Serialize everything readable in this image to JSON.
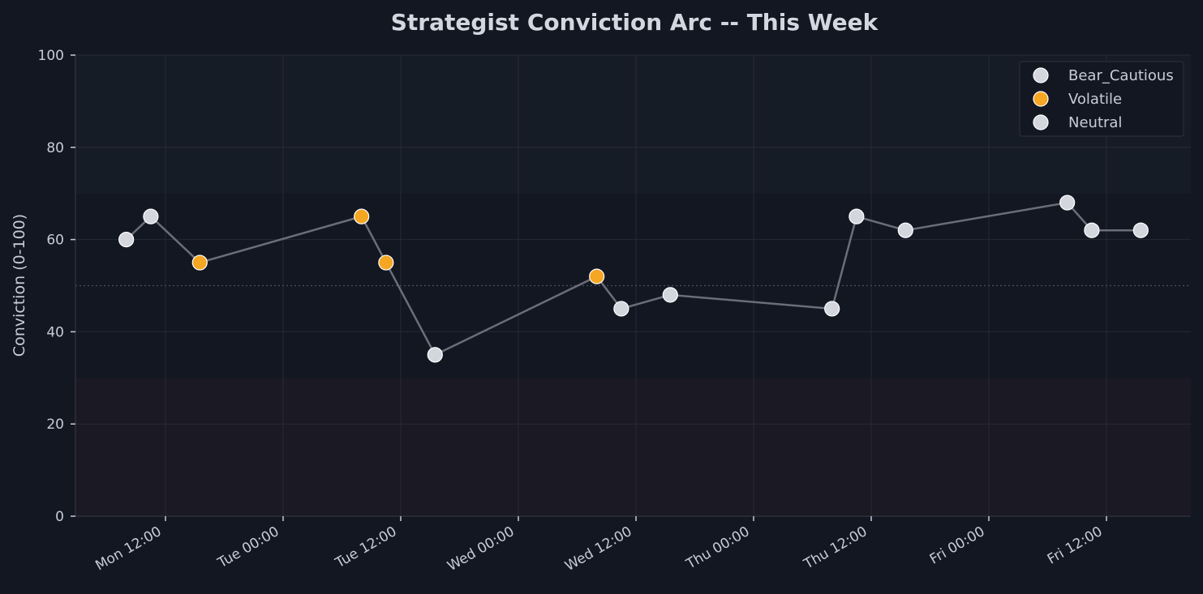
{
  "chart_data": {
    "type": "line",
    "title": "Strategist Conviction Arc -- This Week",
    "xlabel": "",
    "ylabel": "Conviction (0-100)",
    "ylim": [
      0,
      100
    ],
    "yticks": [
      0,
      20,
      40,
      60,
      80,
      100
    ],
    "xticks": [
      "Mon 12:00",
      "Tue 00:00",
      "Tue 12:00",
      "Wed 00:00",
      "Wed 12:00",
      "Thu 00:00",
      "Thu 12:00",
      "Fri 00:00",
      "Fri 12:00"
    ],
    "grid": true,
    "reference_line": {
      "y": 50,
      "style": "dotted"
    },
    "shaded_bands": [
      {
        "from": 70,
        "to": 100,
        "color": "#161c26",
        "meaning": "high conviction zone"
      },
      {
        "from": 0,
        "to": 30,
        "color": "#1b1923",
        "meaning": "low conviction zone"
      }
    ],
    "legend": {
      "position": "upper right",
      "entries": [
        {
          "label": "Bear_Cautious",
          "color": "#d4d6de"
        },
        {
          "label": "Volatile",
          "color": "#f5a623"
        },
        {
          "label": "Neutral",
          "color": "#d4d6de"
        }
      ]
    },
    "line_color": "#6b6e78",
    "points": [
      {
        "x": "Mon 08:00",
        "hours": -4.0,
        "y": 60,
        "regime": "Neutral"
      },
      {
        "x": "Mon 10:30",
        "hours": -1.5,
        "y": 65,
        "regime": "Neutral"
      },
      {
        "x": "Mon 15:30",
        "hours": 3.5,
        "y": 55,
        "regime": "Volatile"
      },
      {
        "x": "Tue 08:00",
        "hours": 20.0,
        "y": 65,
        "regime": "Volatile"
      },
      {
        "x": "Tue 10:30",
        "hours": 22.5,
        "y": 55,
        "regime": "Volatile"
      },
      {
        "x": "Tue 15:30",
        "hours": 27.5,
        "y": 35,
        "regime": "Bear_Cautious"
      },
      {
        "x": "Wed 08:00",
        "hours": 44.0,
        "y": 52,
        "regime": "Volatile"
      },
      {
        "x": "Wed 10:30",
        "hours": 46.5,
        "y": 45,
        "regime": "Neutral"
      },
      {
        "x": "Wed 15:30",
        "hours": 51.5,
        "y": 48,
        "regime": "Neutral"
      },
      {
        "x": "Thu 08:00",
        "hours": 68.0,
        "y": 45,
        "regime": "Neutral"
      },
      {
        "x": "Thu 10:30",
        "hours": 70.5,
        "y": 65,
        "regime": "Neutral"
      },
      {
        "x": "Thu 15:30",
        "hours": 75.5,
        "y": 62,
        "regime": "Neutral"
      },
      {
        "x": "Fri 08:00",
        "hours": 92.0,
        "y": 68,
        "regime": "Neutral"
      },
      {
        "x": "Fri 10:30",
        "hours": 94.5,
        "y": 62,
        "regime": "Neutral"
      },
      {
        "x": "Fri 15:30",
        "hours": 99.5,
        "y": 62,
        "regime": "Neutral"
      }
    ]
  }
}
